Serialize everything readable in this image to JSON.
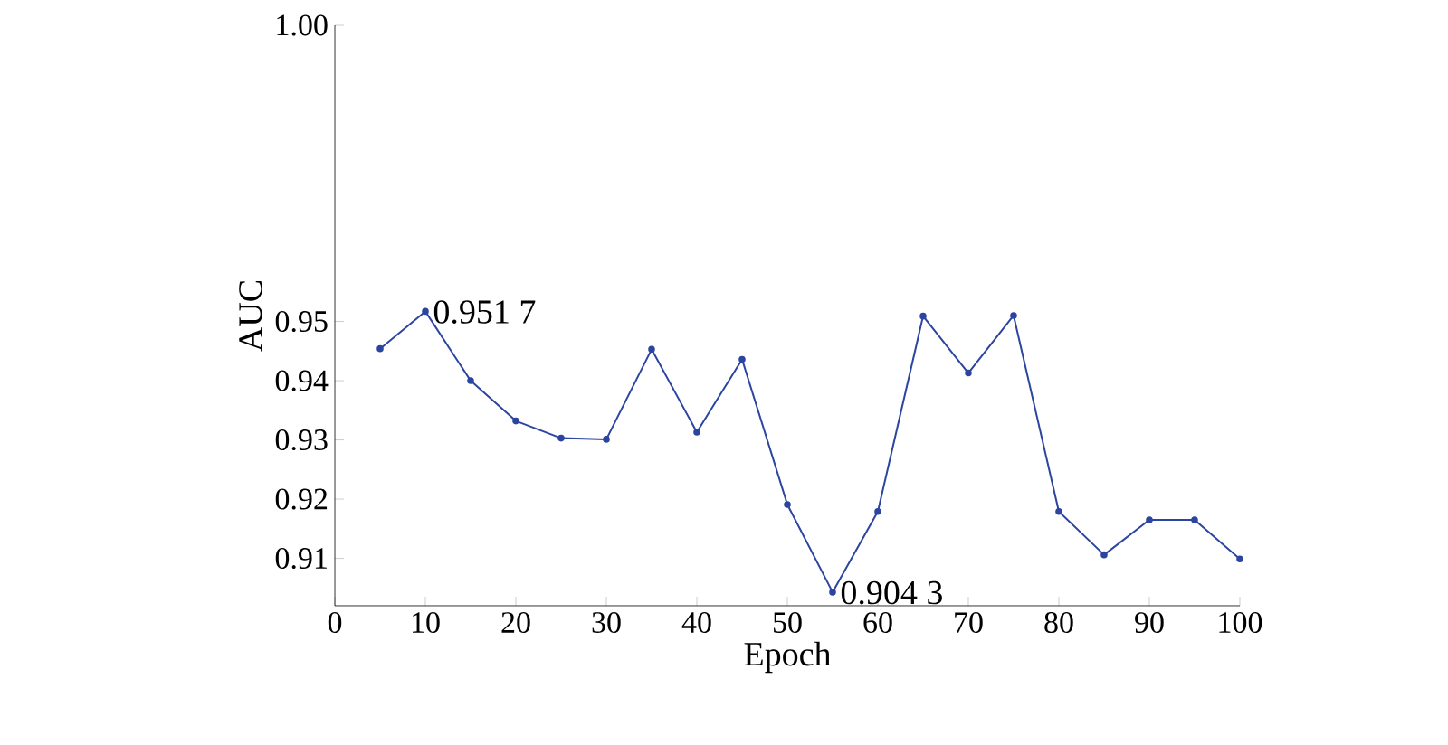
{
  "chart_data": {
    "type": "line",
    "xlabel": "Epoch",
    "ylabel": "AUC",
    "x": [
      5,
      10,
      15,
      20,
      25,
      30,
      35,
      40,
      45,
      50,
      55,
      60,
      65,
      70,
      75,
      80,
      85,
      90,
      95,
      100
    ],
    "series": [
      {
        "color": "#2b45a0",
        "values": [
          0.9454,
          0.9517,
          0.94,
          0.9332,
          0.9303,
          0.9301,
          0.9453,
          0.9313,
          0.9436,
          0.9191,
          0.9043,
          0.9179,
          0.9509,
          0.9413,
          0.951,
          0.9179,
          0.9106,
          0.9165,
          0.9165,
          0.9099
        ]
      }
    ],
    "xlim": [
      0,
      100
    ],
    "ylim": [
      0.902,
      1.0
    ],
    "xticks": [
      0,
      10,
      20,
      30,
      40,
      50,
      60,
      70,
      80,
      90,
      100
    ],
    "yticks": [
      0.91,
      0.92,
      0.93,
      0.94,
      0.95,
      {
        "value": 1.0,
        "label": "1.00"
      }
    ],
    "annotations": [
      {
        "text": "0.951 7",
        "x": 10,
        "y": 0.9517
      },
      {
        "text": "0.904 3",
        "x": 55,
        "y": 0.9043
      }
    ],
    "marker": "circle",
    "line_style": "solid"
  }
}
